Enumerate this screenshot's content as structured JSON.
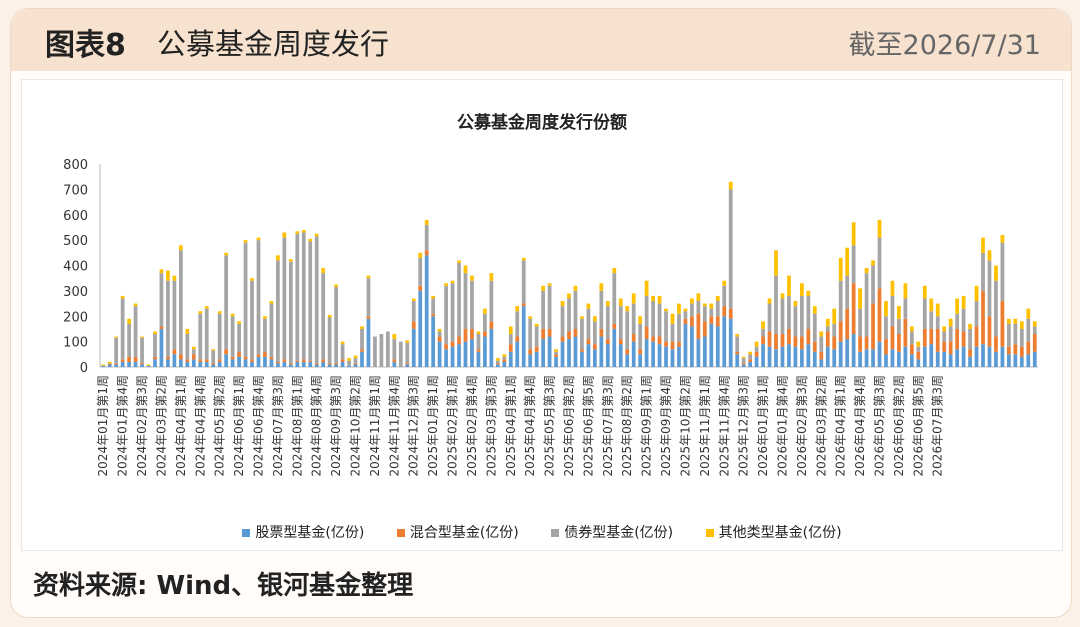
{
  "header": {
    "fig_label": "图表8",
    "fig_title": "公募基金周度发行",
    "date": "截至2026/7/31"
  },
  "source": "资料来源: Wind、银河基金整理",
  "chart_data": {
    "type": "bar",
    "stacked": true,
    "title": "公募基金周度发行份额",
    "ylim": [
      0,
      800
    ],
    "yticks": [
      0,
      100,
      200,
      300,
      400,
      500,
      600,
      700,
      800
    ],
    "grid": false,
    "legend_position": "bottom",
    "colors": [
      "#5b9bd5",
      "#ed7d31",
      "#a5a5a5",
      "#ffc000"
    ],
    "tick_labels": [
      "2024年01月第1周",
      "2024年01月第4周",
      "2024年02月第3周",
      "2024年03月第2周",
      "2024年04月第1周",
      "2024年04月第4周",
      "2024年05月第2周",
      "2024年06月第1周",
      "2024年06月第4周",
      "2024年07月第3周",
      "2024年08月第1周",
      "2024年08月第4周",
      "2024年09月第3周",
      "2024年10月第2周",
      "2024年11月第1周",
      "2024年11月第4周",
      "2024年12月第3周",
      "2025年01月第1周",
      "2025年02月第1周",
      "2025年02月第4周",
      "2025年03月第3周",
      "2025年04月第1周",
      "2025年04月第4周",
      "2025年05月第3周",
      "2025年06月第2周",
      "2025年06月第5周",
      "2025年07月第3周",
      "2025年08月第2周",
      "2025年09月第1周",
      "2025年09月第4周",
      "2025年10月第2周",
      "2025年11月第1周",
      "2025年11月第4周",
      "2025年12月第3周",
      "2026年01月第1周",
      "2026年01月第4周",
      "2026年02月第3周",
      "2026年03月第2周",
      "2026年04月第1周",
      "2026年04月第4周",
      "2026年05月第3周",
      "2026年06月第2周",
      "2026年06月第5周",
      "2026年07月第3周"
    ],
    "tick_every": 3,
    "series": [
      {
        "name": "股票型基金(亿份)",
        "values": [
          5,
          10,
          10,
          20,
          20,
          20,
          10,
          5,
          30,
          150,
          30,
          50,
          30,
          20,
          30,
          20,
          20,
          10,
          20,
          50,
          30,
          40,
          30,
          20,
          40,
          40,
          30,
          15,
          20,
          10,
          20,
          20,
          20,
          10,
          20,
          10,
          10,
          20,
          5,
          10,
          60,
          190,
          0,
          0,
          0,
          20,
          0,
          10,
          150,
          300,
          440,
          200,
          100,
          70,
          80,
          90,
          100,
          110,
          60,
          120,
          150,
          10,
          20,
          60,
          100,
          240,
          50,
          60,
          110,
          120,
          40,
          100,
          110,
          120,
          60,
          90,
          70,
          120,
          90,
          150,
          90,
          50,
          100,
          50,
          110,
          100,
          90,
          80,
          70,
          80,
          170,
          160,
          110,
          120,
          170,
          160,
          200,
          190,
          50,
          10,
          20,
          40,
          90,
          80,
          70,
          80,
          90,
          80,
          70,
          90,
          60,
          30,
          80,
          70,
          100,
          110,
          130,
          60,
          70,
          70,
          100,
          50,
          70,
          60,
          80,
          50,
          30,
          80,
          90,
          60,
          60,
          50,
          70,
          80,
          40,
          80,
          90,
          80,
          60,
          80,
          50,
          50,
          40,
          50,
          60
        ]
      },
      {
        "name": "混合型基金(亿份)",
        "values": [
          0,
          5,
          5,
          10,
          20,
          20,
          5,
          0,
          10,
          10,
          10,
          20,
          20,
          10,
          20,
          10,
          10,
          5,
          10,
          20,
          10,
          20,
          10,
          10,
          10,
          20,
          10,
          5,
          10,
          5,
          5,
          10,
          5,
          5,
          10,
          5,
          5,
          10,
          0,
          5,
          10,
          10,
          0,
          0,
          0,
          10,
          0,
          5,
          30,
          20,
          20,
          10,
          20,
          20,
          20,
          30,
          50,
          40,
          10,
          20,
          30,
          5,
          10,
          30,
          20,
          10,
          20,
          20,
          40,
          30,
          10,
          20,
          30,
          30,
          10,
          20,
          20,
          30,
          20,
          20,
          20,
          20,
          30,
          20,
          50,
          20,
          30,
          20,
          30,
          20,
          20,
          40,
          100,
          60,
          30,
          40,
          40,
          40,
          10,
          5,
          10,
          20,
          30,
          60,
          60,
          50,
          60,
          40,
          50,
          60,
          40,
          30,
          60,
          50,
          80,
          120,
          200,
          60,
          50,
          180,
          210,
          60,
          90,
          70,
          110,
          40,
          30,
          70,
          60,
          90,
          40,
          50,
          80,
          60,
          30,
          80,
          210,
          120,
          60,
          180,
          30,
          40,
          40,
          50,
          70
        ]
      },
      {
        "name": "债券型基金(亿份)",
        "values": [
          0,
          0,
          100,
          240,
          130,
          200,
          100,
          0,
          90,
          210,
          300,
          270,
          410,
          100,
          20,
          180,
          200,
          50,
          180,
          370,
          160,
          110,
          450,
          310,
          450,
          130,
          210,
          400,
          480,
          400,
          500,
          500,
          470,
          500,
          340,
          180,
          300,
          60,
          20,
          20,
          80,
          150,
          120,
          130,
          140,
          80,
          100,
          80,
          80,
          110,
          100,
          60,
          20,
          230,
          230,
          290,
          220,
          190,
          60,
          70,
          160,
          10,
          10,
          40,
          100,
          170,
          120,
          80,
          150,
          170,
          10,
          120,
          130,
          150,
          120,
          120,
          90,
          150,
          130,
          200,
          130,
          150,
          120,
          100,
          120,
          140,
          130,
          120,
          70,
          110,
          30,
          50,
          50,
          60,
          30,
          60,
          80,
          470,
          60,
          20,
          20,
          20,
          30,
          110,
          230,
          140,
          130,
          120,
          160,
          130,
          110,
          60,
          20,
          50,
          160,
          130,
          150,
          110,
          250,
          150,
          200,
          90,
          120,
          60,
          80,
          50,
          20,
          120,
          70,
          50,
          40,
          60,
          60,
          90,
          80,
          100,
          150,
          220,
          220,
          230,
          90,
          80,
          70,
          90,
          30
        ]
      },
      {
        "name": "其他类型基金(亿份)",
        "values": [
          5,
          5,
          5,
          10,
          20,
          10,
          5,
          5,
          10,
          15,
          40,
          20,
          20,
          20,
          10,
          10,
          10,
          5,
          10,
          10,
          10,
          10,
          10,
          10,
          10,
          10,
          10,
          20,
          20,
          10,
          10,
          10,
          10,
          10,
          20,
          10,
          10,
          10,
          10,
          10,
          10,
          10,
          0,
          0,
          0,
          20,
          0,
          10,
          10,
          20,
          20,
          10,
          10,
          10,
          10,
          10,
          30,
          20,
          10,
          20,
          30,
          10,
          10,
          30,
          20,
          10,
          10,
          10,
          20,
          10,
          10,
          20,
          20,
          20,
          10,
          20,
          20,
          30,
          20,
          20,
          30,
          20,
          40,
          30,
          60,
          20,
          30,
          10,
          40,
          40,
          10,
          20,
          30,
          10,
          20,
          20,
          20,
          30,
          10,
          5,
          10,
          20,
          30,
          20,
          100,
          20,
          80,
          20,
          50,
          20,
          30,
          20,
          30,
          60,
          90,
          110,
          90,
          80,
          20,
          20,
          70,
          60,
          60,
          50,
          60,
          20,
          20,
          50,
          50,
          50,
          20,
          30,
          60,
          50,
          20,
          60,
          60,
          40,
          60,
          30,
          20,
          20,
          30,
          40,
          20
        ]
      }
    ]
  }
}
